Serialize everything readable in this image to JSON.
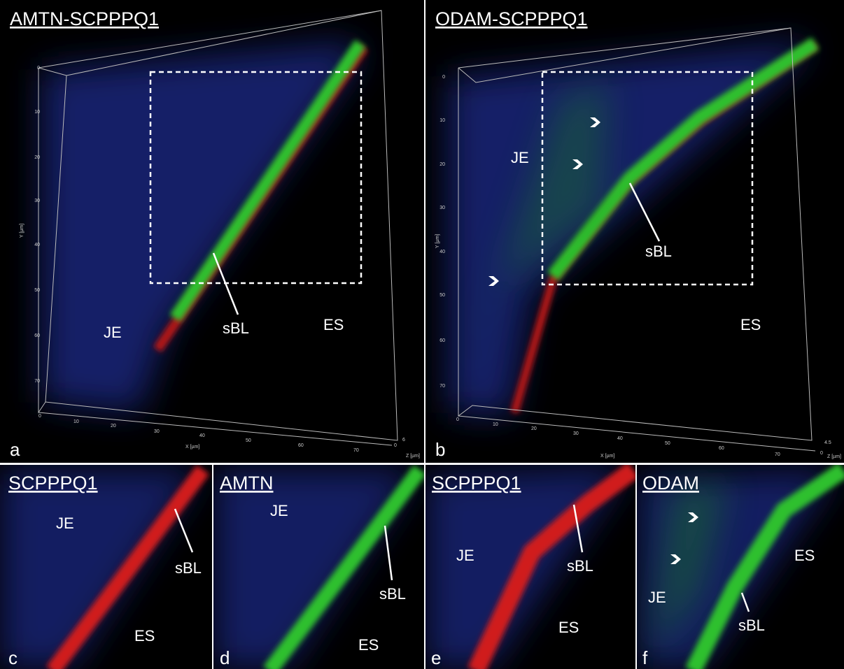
{
  "panels": [
    {
      "letter": "a",
      "title": "AMTN-SCPPPQ1",
      "labels": {
        "je": "JE",
        "sbl": "sBL",
        "es": "ES"
      },
      "axes": {
        "y_title": "Y [µm]",
        "x_title": "X [µm]",
        "z_title": "Z [µm]",
        "yticks": [
          0,
          10,
          20,
          30,
          40,
          50,
          60,
          70
        ],
        "xticks": [
          0,
          10,
          20,
          30,
          40,
          50,
          60,
          70
        ],
        "zticks": [
          0,
          6
        ]
      }
    },
    {
      "letter": "b",
      "title": "ODAM-SCPPPQ1",
      "labels": {
        "je": "JE",
        "sbl": "sBL",
        "es": "ES"
      },
      "axes": {
        "y_title": "Y [µm]",
        "x_title": "X [µm]",
        "z_title": "Z [µm]",
        "yticks": [
          0,
          10,
          20,
          30,
          40,
          50,
          60,
          70
        ],
        "xticks": [
          0,
          10,
          20,
          30,
          40,
          50,
          60,
          70
        ],
        "zticks": [
          0,
          4.5
        ]
      }
    },
    {
      "letter": "c",
      "title": "SCPPPQ1",
      "labels": {
        "je": "JE",
        "sbl": "sBL",
        "es": "ES"
      }
    },
    {
      "letter": "d",
      "title": "AMTN",
      "labels": {
        "je": "JE",
        "sbl": "sBL",
        "es": "ES"
      }
    },
    {
      "letter": "e",
      "title": "SCPPPQ1",
      "labels": {
        "je": "JE",
        "sbl": "sBL",
        "es": "ES"
      }
    },
    {
      "letter": "f",
      "title": "ODAM",
      "labels": {
        "je": "JE",
        "sbl": "sBL",
        "es": "ES"
      }
    }
  ]
}
